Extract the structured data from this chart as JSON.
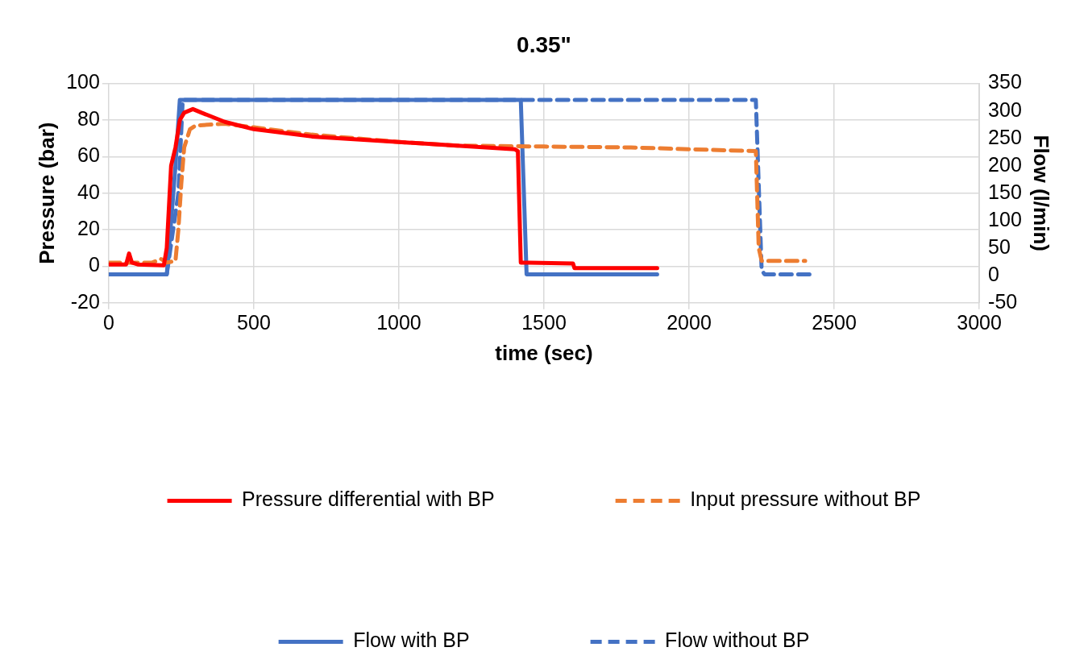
{
  "chart_data": {
    "type": "line",
    "title": "0.35\"",
    "xlabel": "time (sec)",
    "ylabel": "Pressure (bar)",
    "y2label": "Flow (l/min)",
    "xlim": [
      0,
      3000
    ],
    "xticks": [
      0,
      500,
      1000,
      1500,
      2000,
      2500,
      3000
    ],
    "ylim": [
      -20,
      100
    ],
    "yticks": [
      -20,
      0,
      20,
      40,
      60,
      80,
      100
    ],
    "y2lim": [
      -50,
      350
    ],
    "y2ticks": [
      -50,
      0,
      50,
      100,
      150,
      200,
      250,
      300,
      350
    ],
    "grid": true,
    "legend": "bottom",
    "marker": "none",
    "series": [
      {
        "name": "Pressure differential with BP",
        "color": "#ff0000",
        "line_style": "solid",
        "x": [
          0,
          60,
          70,
          80,
          100,
          190,
          200,
          215,
          230,
          245,
          260,
          290,
          320,
          400,
          500,
          600,
          700,
          800,
          1000,
          1200,
          1400,
          1410,
          1420,
          1450,
          1600,
          1605,
          1890
        ],
        "values": [
          1,
          1,
          7,
          2,
          1,
          0.5,
          10,
          55,
          65,
          80,
          84,
          86,
          84,
          79,
          75,
          73,
          71,
          70,
          68,
          66,
          64,
          63,
          2,
          2,
          1.5,
          -1,
          -1
        ]
      },
      {
        "name": "Input pressure without BP",
        "color": "#ed7d31",
        "line_style": "dashed",
        "x": [
          0,
          150,
          180,
          200,
          230,
          240,
          250,
          260,
          280,
          300,
          400,
          500,
          700,
          1000,
          1200,
          1500,
          1800,
          2000,
          2230,
          2240,
          2250,
          2400
        ],
        "values": [
          2,
          2,
          4,
          2,
          3,
          20,
          45,
          65,
          75,
          77,
          78,
          76,
          72,
          68,
          66,
          65.5,
          65,
          64,
          63,
          10,
          3,
          3
        ]
      },
      {
        "name": "Flow with BP",
        "color": "#4472c4",
        "line_style": "solid",
        "axis": "y2",
        "x": [
          0,
          200,
          205,
          230,
          245,
          1420,
          1440,
          1890
        ],
        "values": [
          2,
          2,
          30,
          200,
          320,
          320,
          2,
          2
        ]
      },
      {
        "name": "Flow without BP",
        "color": "#4472c4",
        "line_style": "dashed",
        "axis": "y2",
        "x": [
          200,
          240,
          255,
          2230,
          2250,
          2260,
          2420
        ],
        "values": [
          2,
          150,
          320,
          320,
          10,
          2,
          2
        ]
      }
    ]
  }
}
